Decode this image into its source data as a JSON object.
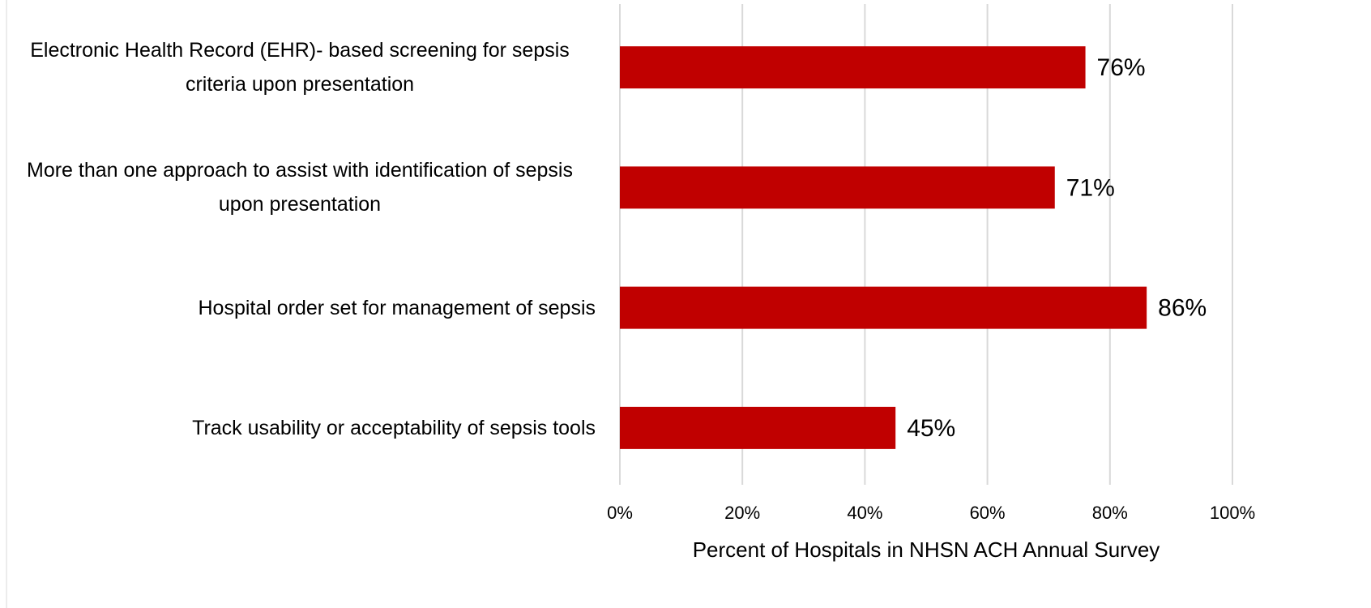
{
  "chart_data": {
    "type": "hbar",
    "categories": [
      "Electronic Health Record (EHR)- based screening for sepsis criteria upon presentation",
      "More than one approach to assist with identification of sepsis upon presentation",
      "Hospital order set for management of sepsis",
      "Track usability or acceptability of sepsis tools"
    ],
    "values": [
      76,
      71,
      86,
      45
    ],
    "value_labels": [
      "76%",
      "71%",
      "86%",
      "45%"
    ],
    "color": "#c00000",
    "xlim": [
      0,
      100
    ],
    "xticks": [
      {
        "value": 0,
        "label": "0%"
      },
      {
        "value": 20,
        "label": "20%"
      },
      {
        "value": 40,
        "label": "40%"
      },
      {
        "value": 60,
        "label": "60%"
      },
      {
        "value": 80,
        "label": "80%"
      },
      {
        "value": 100,
        "label": "100%"
      }
    ],
    "xlabel": "Percent of Hospitals in NHSN ACH Annual Survey",
    "grid": true
  }
}
